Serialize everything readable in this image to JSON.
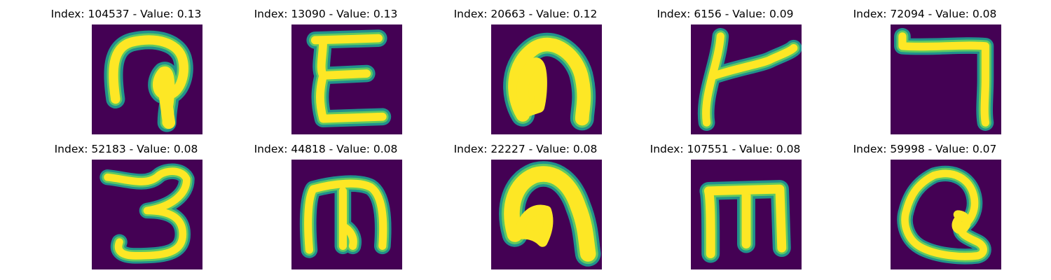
{
  "colors": {
    "background": "#440154",
    "stroke_core": "#fde725",
    "stroke_mid": "#5ec962",
    "stroke_edge": "#21918c"
  },
  "panels": [
    {
      "index_label": "Index: 104537 - Value: 0.13",
      "glyph": "ઊ"
    },
    {
      "index_label": "Index: 13090 - Value: 0.13",
      "glyph": "E"
    },
    {
      "index_label": "Index: 20663 - Value: 0.12",
      "glyph": "∩"
    },
    {
      "index_label": "Index: 6156 - Value: 0.09",
      "glyph": "ト"
    },
    {
      "index_label": "Index: 72094 - Value: 0.08",
      "glyph": "ᒣ"
    },
    {
      "index_label": "Index: 52183 - Value: 0.08",
      "glyph": "3"
    },
    {
      "index_label": "Index: 44818 - Value: 0.08",
      "glyph": "m"
    },
    {
      "index_label": "Index: 22227 - Value: 0.08",
      "glyph": "∩"
    },
    {
      "index_label": "Index: 107551 - Value: 0.08",
      "glyph": "ш"
    },
    {
      "index_label": "Index: 59998 - Value: 0.07",
      "glyph": "ઉ"
    }
  ]
}
